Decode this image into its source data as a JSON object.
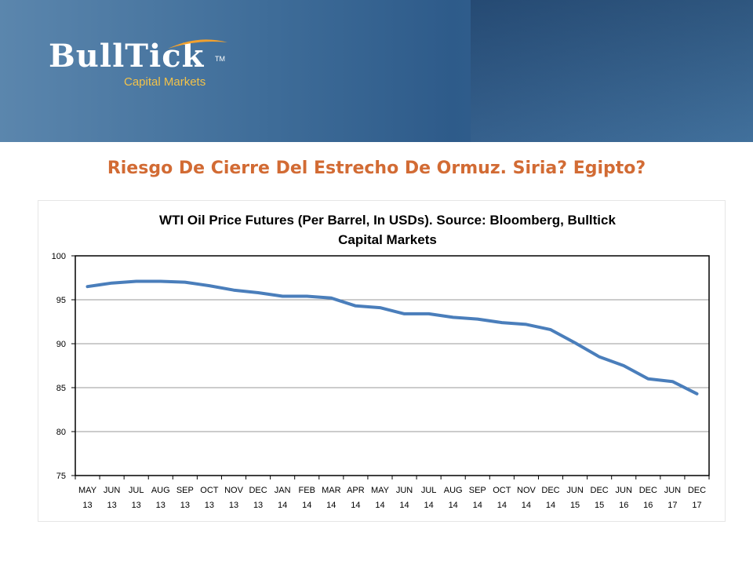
{
  "banner": {
    "logo_text": "BullTick",
    "logo_tm": "TM",
    "logo_subtitle": "Capital Markets",
    "colors": {
      "banner": "#3f6d99",
      "logo_sub": "#f2c24a"
    }
  },
  "slide": {
    "title": "Riesgo De Cierre Del Estrecho De Ormuz. Siria? Egipto?",
    "title_color": "#d26b34"
  },
  "chart_data": {
    "type": "line",
    "title_lines": [
      "WTI Oil Price Futures (Per Barrel, In USDs). Source: Bloomberg, Bulltick",
      "Capital Markets"
    ],
    "categories": [
      [
        "MAY",
        "13"
      ],
      [
        "JUN",
        "13"
      ],
      [
        "JUL",
        "13"
      ],
      [
        "AUG",
        "13"
      ],
      [
        "SEP",
        "13"
      ],
      [
        "OCT",
        "13"
      ],
      [
        "NOV",
        "13"
      ],
      [
        "DEC",
        "13"
      ],
      [
        "JAN",
        "14"
      ],
      [
        "FEB",
        "14"
      ],
      [
        "MAR",
        "14"
      ],
      [
        "APR",
        "14"
      ],
      [
        "MAY",
        "14"
      ],
      [
        "JUN",
        "14"
      ],
      [
        "JUL",
        "14"
      ],
      [
        "AUG",
        "14"
      ],
      [
        "SEP",
        "14"
      ],
      [
        "OCT",
        "14"
      ],
      [
        "NOV",
        "14"
      ],
      [
        "DEC",
        "14"
      ],
      [
        "JUN",
        "15"
      ],
      [
        "DEC",
        "15"
      ],
      [
        "JUN",
        "16"
      ],
      [
        "DEC",
        "16"
      ],
      [
        "JUN",
        "17"
      ],
      [
        "DEC",
        "17"
      ]
    ],
    "series": [
      {
        "values": [
          96.5,
          96.9,
          97.1,
          97.1,
          97.0,
          96.6,
          96.1,
          95.8,
          95.4,
          95.4,
          95.2,
          94.3,
          94.1,
          93.4,
          93.4,
          93.0,
          92.8,
          92.4,
          92.2,
          91.6,
          90.1,
          88.5,
          87.5,
          86.0,
          85.7,
          84.3
        ]
      }
    ],
    "ylim": [
      75,
      100
    ],
    "yticks": [
      75,
      80,
      85,
      90,
      95,
      100
    ],
    "grid": true,
    "line_color": "#4a7ebb"
  }
}
